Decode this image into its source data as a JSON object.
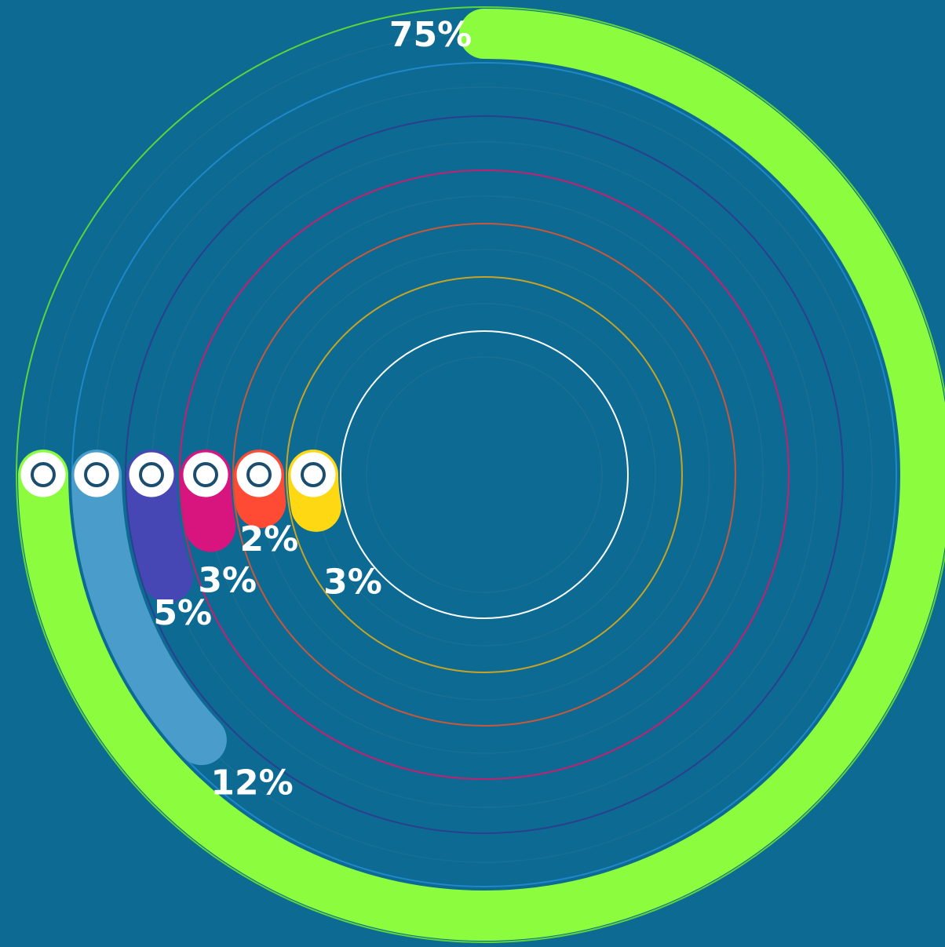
{
  "chart_data": {
    "type": "radial_bar",
    "values": [
      75,
      12,
      5,
      3,
      2,
      3
    ],
    "value_labels": [
      "75%",
      "12%",
      "5%",
      "3%",
      "2%",
      "3%"
    ],
    "colors": [
      "#8cfd3e",
      "#4a9dca",
      "#4646b4",
      "#d8147e",
      "#ff4a34",
      "#ffd814"
    ],
    "ylim": [
      0,
      100
    ]
  }
}
